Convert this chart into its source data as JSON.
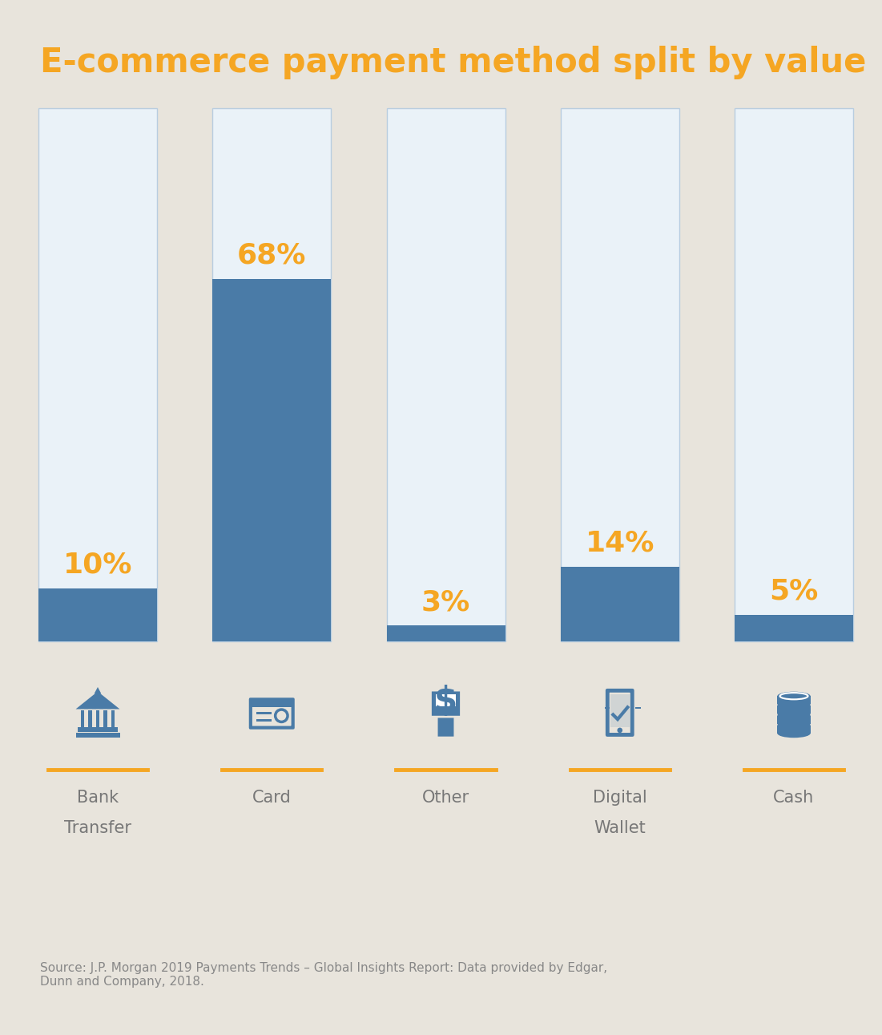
{
  "title": "E-commerce payment method split by value",
  "title_color": "#F5A623",
  "background_color": "#E8E4DC",
  "bar_bg_color": "#EAF2F8",
  "bar_fill_color": "#4A7BA7",
  "bar_border_color": "#B8CDE0",
  "categories": [
    "Bank\nTransfer",
    "Card",
    "Other",
    "Digital\nWallet",
    "Cash"
  ],
  "values": [
    10,
    68,
    3,
    14,
    5
  ],
  "label_color": "#F5A623",
  "source_text": "Source: J.P. Morgan 2019 Payments Trends – Global Insights Report: Data provided by Edgar,\nDunn and Company, 2018.",
  "source_color": "#888888",
  "divider_color": "#F5A623",
  "icon_color": "#4A7BA7",
  "label_text_color": "#777777"
}
